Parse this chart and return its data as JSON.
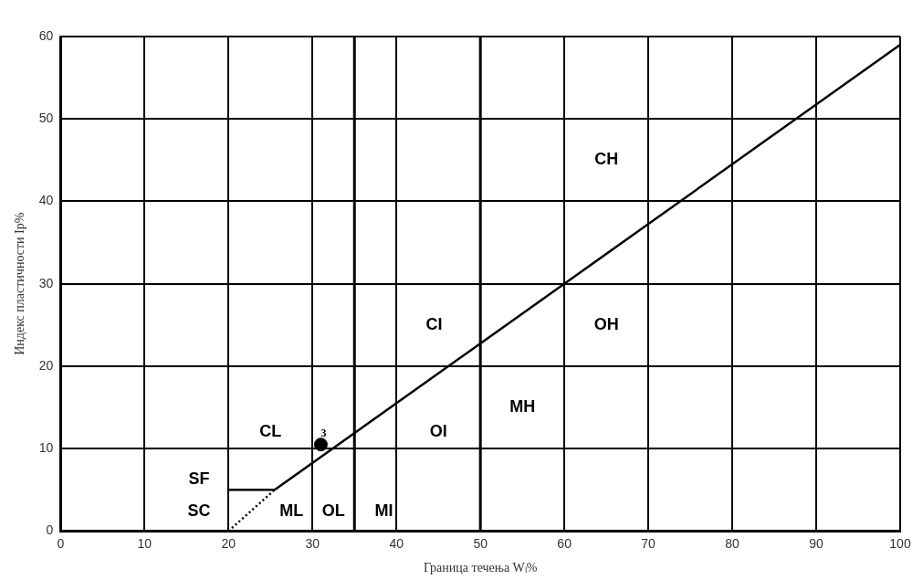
{
  "chart_data": {
    "type": "line",
    "xlabel": "Граница течења Wₗ%",
    "ylabel": "Индекс пластичности Ip%",
    "xlim": [
      0,
      100
    ],
    "xticks": [
      0,
      10,
      20,
      30,
      40,
      50,
      60,
      70,
      80,
      90,
      100
    ],
    "ylim": [
      0,
      60
    ],
    "yticks": [
      0,
      10,
      20,
      30,
      40,
      50,
      60
    ],
    "grid": true,
    "legend": false,
    "series": [
      {
        "color": "#000000",
        "x": [
          25.5,
          100
        ],
        "values": [
          5,
          59
        ],
        "line_style": "solid",
        "marker": "none"
      },
      {
        "color": "#000000",
        "x": [
          20,
          25.5
        ],
        "values": [
          5,
          5
        ],
        "line_style": "solid",
        "marker": "none"
      },
      {
        "color": "#000000",
        "x": [
          20,
          25.5
        ],
        "values": [
          0,
          5
        ],
        "line_style": "dotted",
        "marker": "none"
      },
      {
        "type": "scatter",
        "name": "3",
        "color": "#000000",
        "x": [
          31
        ],
        "values": [
          10.5
        ],
        "marker": "circle"
      }
    ],
    "ref_lines": [
      {
        "axis": "x",
        "value": 35,
        "color": "#000000"
      },
      {
        "axis": "x",
        "value": 50,
        "color": "#000000"
      }
    ],
    "annotations": [
      "CH",
      "CI",
      "OH",
      "MH",
      "OI",
      "CL",
      "SF",
      "SC",
      "ML",
      "OL",
      "MI"
    ]
  }
}
